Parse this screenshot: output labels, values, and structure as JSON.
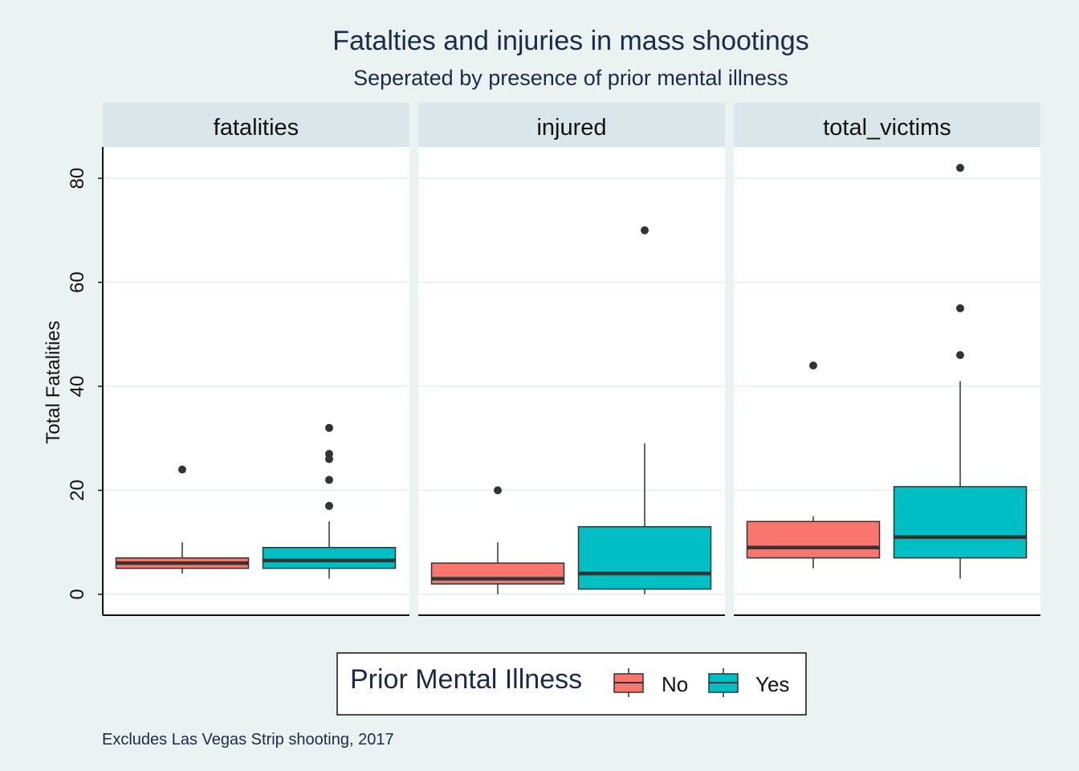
{
  "chart_data": {
    "type": "boxplot",
    "title": "Fatalties and injuries in mass shootings",
    "subtitle": "Seperated by presence of prior mental illness",
    "ylabel": "Total Fatalities",
    "xlabel": "",
    "caption": "Excludes Las Vegas Strip shooting, 2017",
    "ylim": [
      -4,
      86
    ],
    "yticks": [
      0,
      20,
      40,
      60,
      80
    ],
    "grid": true,
    "legend": {
      "title": "Prior Mental Illness",
      "position": "bottom",
      "entries": [
        {
          "label": "No",
          "color": "#f8766d"
        },
        {
          "label": "Yes",
          "color": "#00bfc4"
        }
      ]
    },
    "facets": [
      "fatalities",
      "injured",
      "total_victims"
    ],
    "series": [
      {
        "facet": "fatalities",
        "boxes": [
          {
            "group": "No",
            "min": 4,
            "q1": 5,
            "median": 6,
            "q3": 7,
            "max": 10,
            "outliers": [
              24
            ]
          },
          {
            "group": "Yes",
            "min": 3,
            "q1": 5,
            "median": 6.5,
            "q3": 9,
            "max": 14,
            "outliers": [
              17,
              22,
              26,
              27,
              32
            ]
          }
        ]
      },
      {
        "facet": "injured",
        "boxes": [
          {
            "group": "No",
            "min": 0,
            "q1": 2,
            "median": 3,
            "q3": 6,
            "max": 10,
            "outliers": [
              20
            ]
          },
          {
            "group": "Yes",
            "min": 0,
            "q1": 1,
            "median": 4,
            "q3": 13,
            "max": 29,
            "outliers": [
              70
            ]
          }
        ]
      },
      {
        "facet": "total_victims",
        "boxes": [
          {
            "group": "No",
            "min": 5,
            "q1": 7,
            "median": 9,
            "q3": 14,
            "max": 15,
            "outliers": [
              44
            ]
          },
          {
            "group": "Yes",
            "min": 3,
            "q1": 7,
            "median": 11,
            "q3": 20.7,
            "max": 41,
            "outliers": [
              46,
              55,
              82
            ]
          }
        ]
      }
    ],
    "colors": {
      "background": "#ebf2f2",
      "strip": "#dae6ea",
      "panel": "#ffffff",
      "grid": "#ebf2f2",
      "box_outline": "#333333",
      "title": "#1b2a4a"
    }
  }
}
